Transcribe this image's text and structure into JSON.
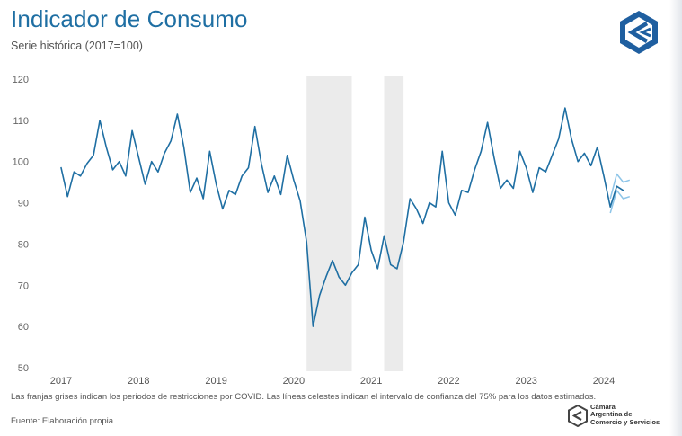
{
  "header": {
    "title": "Indicador de Consumo",
    "subtitle": "Serie histórica (2017=100)"
  },
  "footer": {
    "note": "Las franjas grises indican los periodos de restricciones por COVID. Las líneas celestes indican el intervalo de confianza del 75% para los datos estimados.",
    "source": "Fuente: Elaboración propia"
  },
  "brand": {
    "line1": "Cámara",
    "line2": "Argentina de",
    "line3": "Comercio y Servicios"
  },
  "colors": {
    "title": "#1f6fa3",
    "series": "#1f6fa3",
    "confidence": "#8ec5e8",
    "covid_band": "#ebebeb",
    "logo": "#1f5fa0"
  },
  "icons": {
    "logo_top": "cac-chevron-logo",
    "logo_bottom": "cac-hexagon-logo"
  },
  "chart_data": {
    "type": "line",
    "title": "Indicador de Consumo",
    "subtitle": "Serie histórica (2017=100)",
    "x_axis": {
      "ticks": [
        "2017",
        "2018",
        "2019",
        "2020",
        "2021",
        "2022",
        "2023",
        "2024"
      ],
      "start": "2017-01",
      "end": "2024-05",
      "frequency": "monthly"
    },
    "y_axis": {
      "ticks": [
        50,
        60,
        70,
        80,
        90,
        100,
        110,
        120
      ],
      "range": [
        50,
        120
      ]
    },
    "grid": false,
    "legend": "none",
    "shaded_periods": [
      {
        "from": "2020-03",
        "to": "2020-09"
      },
      {
        "from": "2021-03",
        "to": "2021-05"
      }
    ],
    "series": [
      {
        "values": [
          98.5,
          91.5,
          97.5,
          96.5,
          99.5,
          101.5,
          110,
          103.5,
          98,
          100,
          96.5,
          107.5,
          101,
          94.5,
          100,
          97.5,
          102,
          105,
          111.5,
          103.5,
          92.5,
          96,
          91,
          102.5,
          94.5,
          88.5,
          93,
          92,
          96.5,
          98.5,
          108.5,
          99.5,
          92.5,
          96.5,
          92,
          101.5,
          95.5,
          90.5,
          80.5,
          60,
          67.5,
          72,
          76,
          72,
          70,
          73,
          75,
          86.5,
          78.5,
          74,
          82,
          75,
          74,
          80.5,
          91,
          88.5,
          85,
          90,
          89,
          102.5,
          90,
          87,
          93,
          92.5,
          98,
          102.5,
          109.5,
          101,
          93.5,
          95.5,
          93.5,
          102.5,
          98.5,
          92.5,
          98.5,
          97.5,
          101.5,
          105.5,
          113,
          105.5,
          100,
          102,
          99,
          103.5,
          96.5,
          89,
          94,
          93
        ]
      },
      {
        "role": "confidence-upper",
        "x": [
          "2024-02",
          "2024-03",
          "2024-04",
          "2024-05"
        ],
        "values": [
          91,
          97,
          95,
          95.5
        ]
      },
      {
        "role": "confidence-lower",
        "x": [
          "2024-02",
          "2024-03",
          "2024-04",
          "2024-05"
        ],
        "values": [
          87.5,
          93,
          91,
          91.5
        ]
      }
    ]
  }
}
